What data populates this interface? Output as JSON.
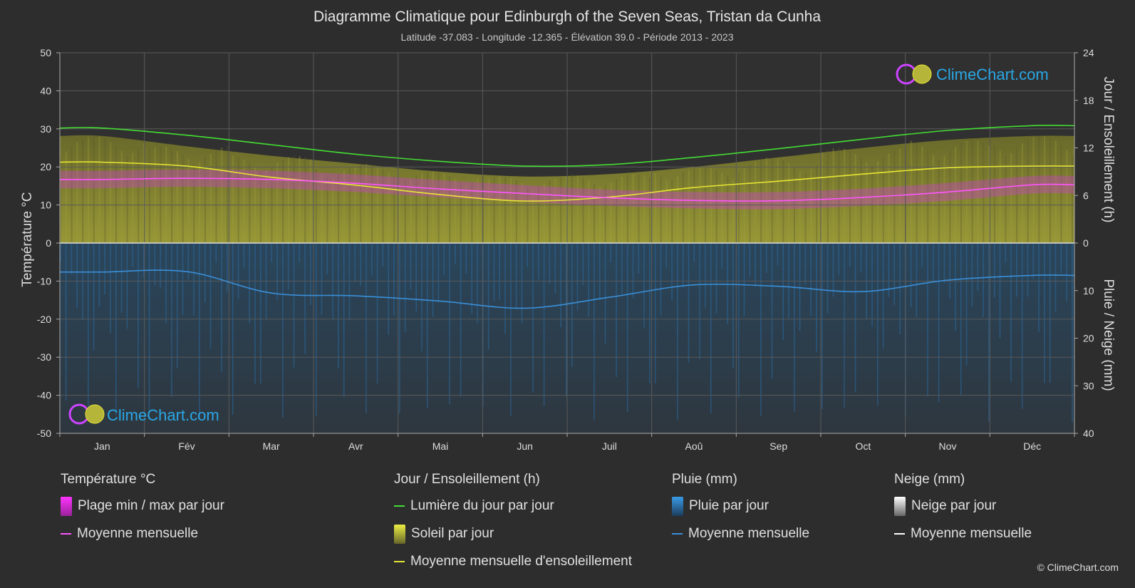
{
  "header": {
    "title": "Diagramme Climatique pour Edinburgh of the Seven Seas,  Tristan da Cunha",
    "subtitle": "Latitude -37.083 - Longitude -12.365 - Élévation 39.0 - Période 2013 - 2023"
  },
  "brand": {
    "name": "ClimeChart.com",
    "copyright": "© ClimeChart.com"
  },
  "chart_data": {
    "type": "line",
    "categories": [
      "Jan",
      "Fév",
      "Mar",
      "Avr",
      "Mai",
      "Jun",
      "Juil",
      "Aoû",
      "Sep",
      "Oct",
      "Nov",
      "Déc"
    ],
    "axes": {
      "left": {
        "label": "Température °C",
        "min": -50,
        "max": 50,
        "ticks": [
          50,
          40,
          30,
          20,
          10,
          0,
          -10,
          -20,
          -30,
          -40,
          -50
        ]
      },
      "right_top": {
        "label": "Jour / Ensoleillement (h)",
        "min": 0,
        "max": 24,
        "ticks": [
          24,
          18,
          12,
          6,
          0
        ]
      },
      "right_bottom": {
        "label": "Pluie / Neige (mm)",
        "min": 0,
        "max": 40,
        "ticks": [
          0,
          10,
          20,
          30,
          40
        ]
      }
    },
    "grid": true,
    "series": [
      {
        "name": "Lumière du jour par jour",
        "axis": "right_top",
        "color": "#44dd33",
        "values": [
          14.5,
          13.6,
          12.4,
          11.2,
          10.3,
          9.7,
          9.9,
          10.8,
          11.9,
          13.1,
          14.2,
          14.8
        ]
      },
      {
        "name": "Moyenne mensuelle d'ensoleillement",
        "axis": "right_top",
        "color": "#e6e633",
        "values": [
          10.2,
          9.7,
          8.3,
          7.3,
          6.1,
          5.3,
          5.8,
          7.0,
          7.8,
          8.7,
          9.5,
          9.7
        ]
      },
      {
        "name": "Soleil par jour",
        "axis": "right_top",
        "color": "#b5b53a",
        "values": [
          13.5,
          12.2,
          11.0,
          10.0,
          9.0,
          8.4,
          8.7,
          9.6,
          10.8,
          12.0,
          13.0,
          13.5
        ]
      },
      {
        "name": "Température moyenne mensuelle",
        "axis": "left",
        "color": "#ff55ff",
        "values": [
          16.7,
          17.0,
          16.7,
          15.7,
          14.2,
          13.0,
          11.9,
          11.2,
          11.1,
          12.0,
          13.4,
          15.3
        ]
      },
      {
        "name": "Température max par jour",
        "axis": "left",
        "color": "#aa55aa",
        "values": [
          19.0,
          19.3,
          19.0,
          18.0,
          16.5,
          15.2,
          14.0,
          13.4,
          13.4,
          14.3,
          15.8,
          17.6
        ]
      },
      {
        "name": "Température min par jour",
        "axis": "left",
        "color": "#aa55aa",
        "values": [
          14.4,
          14.8,
          14.4,
          13.4,
          12.0,
          10.8,
          9.8,
          9.1,
          8.9,
          9.8,
          11.1,
          13.0
        ]
      },
      {
        "name": "Pluie moyenne mensuelle",
        "axis": "right_bottom",
        "color": "#3a8fd8",
        "values": [
          6.1,
          6.0,
          10.5,
          11.1,
          12.2,
          13.7,
          11.4,
          8.8,
          9.1,
          10.2,
          7.8,
          6.8
        ]
      }
    ]
  },
  "months_label": [
    "Jan",
    "Fév",
    "Mar",
    "Avr",
    "Mai",
    "Jun",
    "Juil",
    "Aoû",
    "Sep",
    "Oct",
    "Nov",
    "Déc"
  ],
  "legend": {
    "temperature": {
      "title": "Température °C",
      "range": "Plage min / max par jour",
      "mean": "Moyenne mensuelle"
    },
    "sun": {
      "title": "Jour / Ensoleillement (h)",
      "daylight": "Lumière du jour par jour",
      "sunshine": "Soleil par jour",
      "sun_mean": "Moyenne mensuelle d'ensoleillement"
    },
    "rain": {
      "title": "Pluie (mm)",
      "per_day": "Pluie par jour",
      "mean": "Moyenne mensuelle"
    },
    "snow": {
      "title": "Neige (mm)",
      "per_day": "Neige par jour",
      "mean": "Moyenne mensuelle"
    }
  },
  "colors": {
    "background": "#2d2d2d",
    "daylight": "#44dd33",
    "sunshine": "#e6e633",
    "sun_area": "#8b8b2c",
    "temp_mean": "#ff55ff",
    "temp_range": "#c840c8",
    "rain": "#3a8fd8",
    "rain_area": "#1f4f78",
    "snow": "#ffffff",
    "brand_blue": "#2aa7e6"
  }
}
